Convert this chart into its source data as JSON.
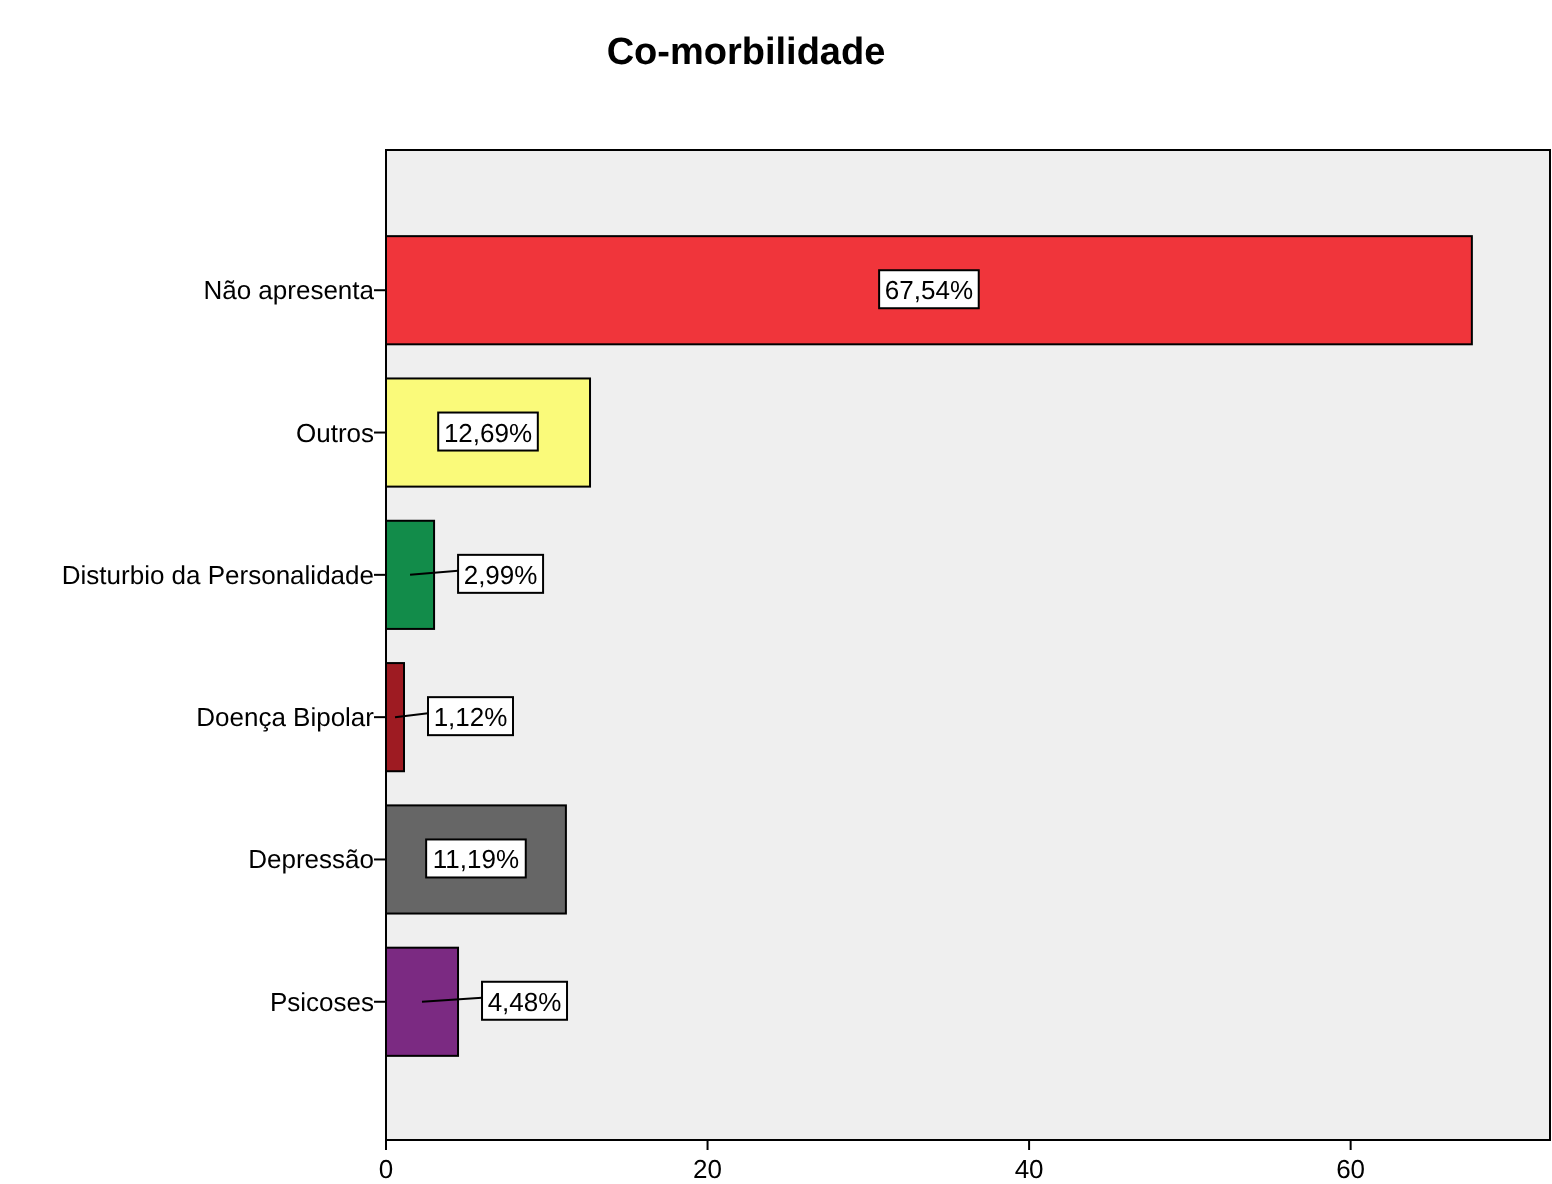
{
  "chart_data": {
    "type": "bar",
    "orientation": "horizontal",
    "title": "Co-morbilidade",
    "categories": [
      "Não apresenta",
      "Outros",
      "Disturbio da Personalidade",
      "Doença Bipolar",
      "Depressão",
      "Psicoses"
    ],
    "values": [
      67.54,
      12.69,
      2.99,
      1.12,
      11.19,
      4.48
    ],
    "value_labels": [
      "67,54%",
      "12,69%",
      "2,99%",
      "1,12%",
      "11,19%",
      "4,48%"
    ],
    "colors": [
      "#f0353b",
      "#fafa7a",
      "#128c4a",
      "#9e1b22",
      "#666666",
      "#7b2a82"
    ],
    "xlim": [
      0,
      72.4
    ],
    "xticks": [
      0,
      20,
      40,
      60
    ]
  }
}
